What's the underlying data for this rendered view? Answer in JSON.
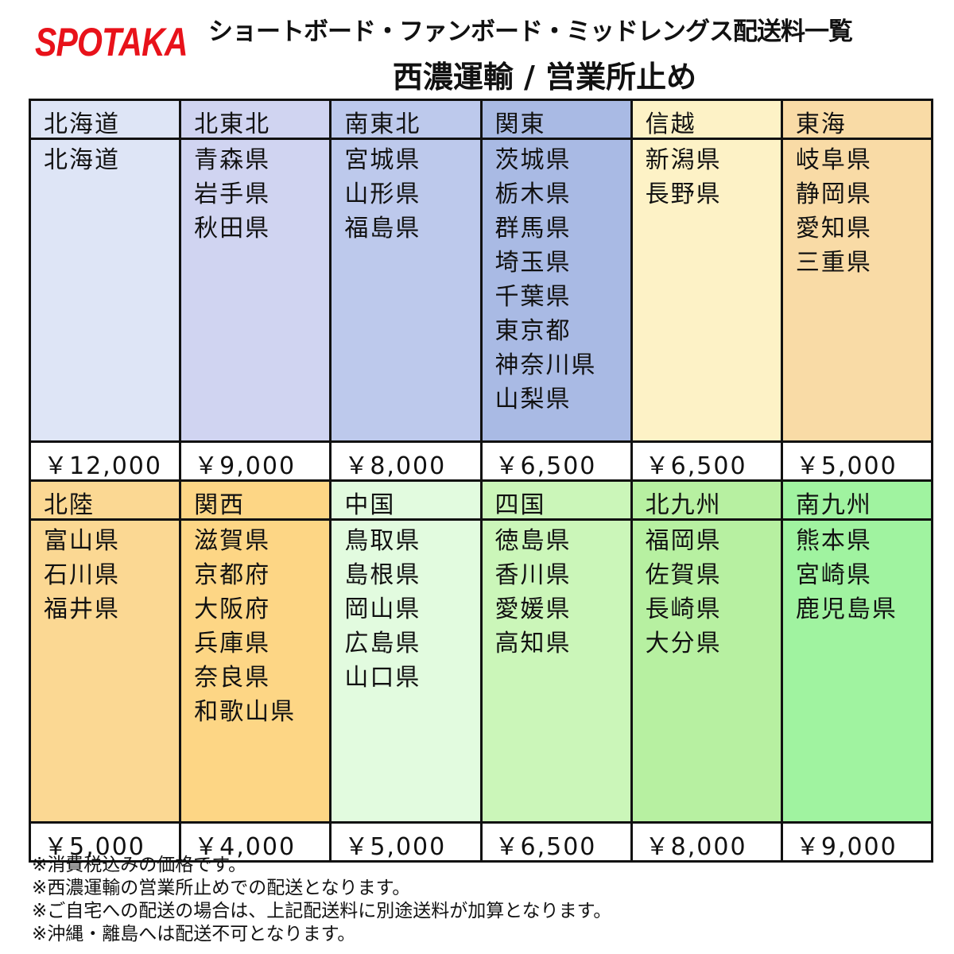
{
  "logo": "SPOTAKA",
  "title": "ショートボード・ファンボード・ミッドレングス配送料一覧",
  "subtitle": "西濃運輸 / 営業所止め",
  "regions": [
    {
      "name": "北海道",
      "prefs": [
        "北海道"
      ],
      "price": "￥12,000",
      "color": "#dee5f6"
    },
    {
      "name": "北東北",
      "prefs": [
        "青森県",
        "岩手県",
        "秋田県"
      ],
      "price": "￥9,000",
      "color": "#d0d4f1"
    },
    {
      "name": "南東北",
      "prefs": [
        "宮城県",
        "山形県",
        "福島県"
      ],
      "price": "￥8,000",
      "color": "#bdc9ec"
    },
    {
      "name": "関東",
      "prefs": [
        "茨城県",
        "栃木県",
        "群馬県",
        "埼玉県",
        "千葉県",
        "東京都",
        "神奈川県",
        "山梨県"
      ],
      "price": "￥6,500",
      "color": "#a9bae4"
    },
    {
      "name": "信越",
      "prefs": [
        "新潟県",
        "長野県"
      ],
      "price": "￥6,500",
      "color": "#fdf2c6"
    },
    {
      "name": "東海",
      "prefs": [
        "岐阜県",
        "静岡県",
        "愛知県",
        "三重県"
      ],
      "price": "￥5,000",
      "color": "#f9dba6"
    },
    {
      "name": "北陸",
      "prefs": [
        "富山県",
        "石川県",
        "福井県"
      ],
      "price": "￥5,000",
      "color": "#fbd893"
    },
    {
      "name": "関西",
      "prefs": [
        "滋賀県",
        "京都府",
        "大阪府",
        "兵庫県",
        "奈良県",
        "和歌山県"
      ],
      "price": "￥4,000",
      "color": "#fdd685"
    },
    {
      "name": "中国",
      "prefs": [
        "鳥取県",
        "島根県",
        "岡山県",
        "広島県",
        "山口県"
      ],
      "price": "￥5,000",
      "color": "#e2fbdf"
    },
    {
      "name": "四国",
      "prefs": [
        "徳島県",
        "香川県",
        "愛媛県",
        "高知県"
      ],
      "price": "￥6,500",
      "color": "#cbf6b9"
    },
    {
      "name": "北九州",
      "prefs": [
        "福岡県",
        "佐賀県",
        "長崎県",
        "大分県"
      ],
      "price": "￥8,000",
      "color": "#b7f0a1"
    },
    {
      "name": "南九州",
      "prefs": [
        "熊本県",
        "宮崎県",
        "鹿児島県"
      ],
      "price": "￥9,000",
      "color": "#a0f3a0"
    }
  ],
  "notes": [
    "※消費税込みの価格です。",
    "※西濃運輸の営業所止めでの配送となります。",
    "※ご自宅への配送の場合は、上記配送料に別途送料が加算となります。",
    "※沖縄・離島へは配送不可となります。"
  ]
}
